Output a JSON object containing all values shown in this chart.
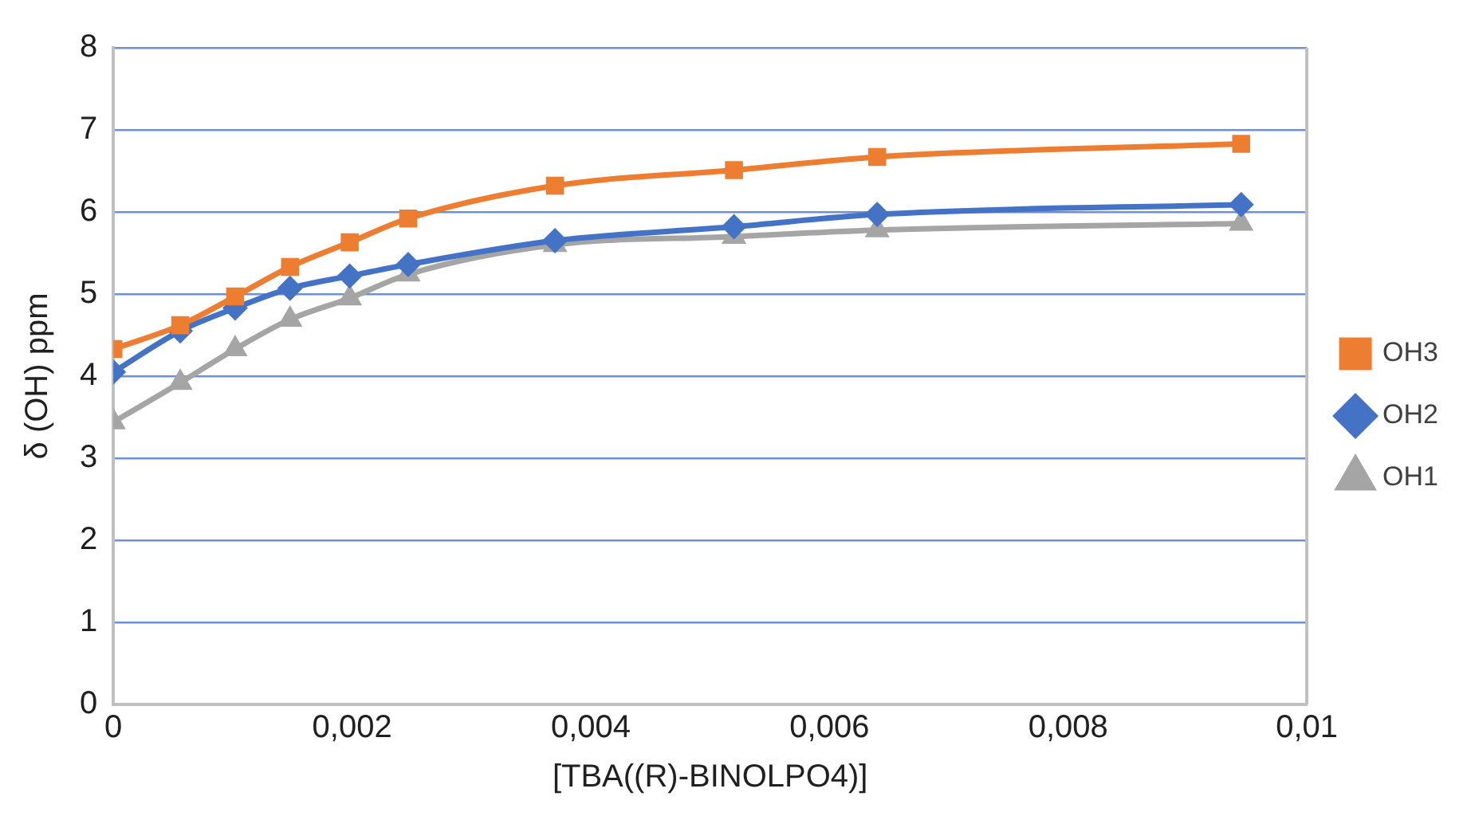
{
  "chart_data": {
    "type": "line",
    "xlabel": "[TBA((R)-BINOLPO4)]",
    "ylabel": "δ (OH) ppm",
    "x": [
      0,
      0.00056,
      0.00102,
      0.00148,
      0.00198,
      0.00247,
      0.0037,
      0.0052,
      0.0064,
      0.00945
    ],
    "series": [
      {
        "name": "OH1",
        "color": "#a5a5a5",
        "marker": "triangle",
        "values": [
          3.44,
          3.92,
          4.33,
          4.69,
          4.95,
          5.24,
          5.6,
          5.7,
          5.78,
          5.86
        ]
      },
      {
        "name": "OH2",
        "color": "#4472c4",
        "marker": "diamond",
        "values": [
          4.05,
          4.55,
          4.83,
          5.07,
          5.22,
          5.36,
          5.65,
          5.82,
          5.97,
          6.09
        ]
      },
      {
        "name": "OH3",
        "color": "#ed7d31",
        "marker": "square",
        "values": [
          4.33,
          4.62,
          4.97,
          5.33,
          5.63,
          5.92,
          6.32,
          6.51,
          6.67,
          6.83
        ]
      }
    ],
    "xlim": [
      0,
      0.01
    ],
    "xticks": [
      0,
      {
        "value": 0.002,
        "label": "0,002"
      },
      {
        "value": 0.004,
        "label": "0,004"
      },
      {
        "value": 0.006,
        "label": "0,006"
      },
      {
        "value": 0.008,
        "label": "0,008"
      },
      {
        "value": 0.01,
        "label": "0,01"
      }
    ],
    "ylim": [
      0,
      8
    ],
    "yticks": [
      0,
      1,
      2,
      3,
      4,
      5,
      6,
      7,
      8
    ],
    "grid": "y",
    "legend": "right",
    "line_style": "solid"
  }
}
